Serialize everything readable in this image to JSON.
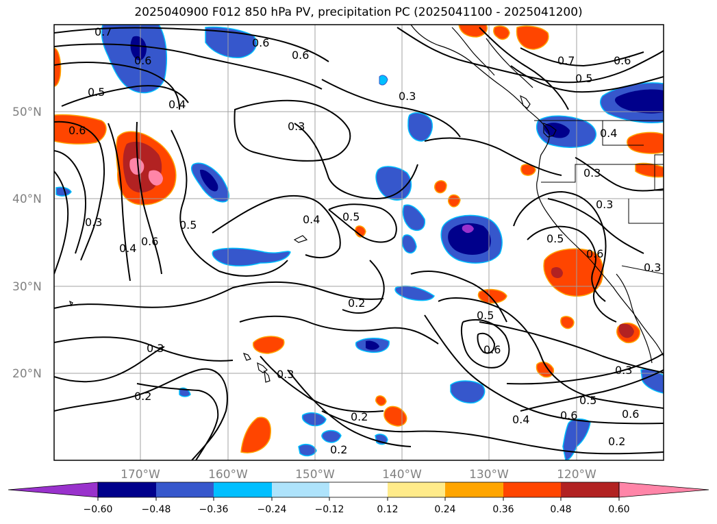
{
  "title": "2025040900 F012 850 hPa PV, precipitation PC (2025041100 - 2025041200)",
  "lat_labels": [
    "50°N",
    "40°N",
    "30°N",
    "20°N"
  ],
  "lon_labels": [
    "170°W",
    "160°W",
    "150°W",
    "140°W",
    "130°W",
    "120°W"
  ],
  "contour_labels": [
    "0.7",
    "0.6",
    "0.5",
    "0.4",
    "0.6",
    "0.6",
    "0.3",
    "0.3",
    "0.7",
    "0.5",
    "0.6",
    "0.6",
    "0.4",
    "0.3",
    "0.3",
    "0.3",
    "0.5",
    "0.4",
    "0.6",
    "0.4",
    "0.5",
    "0.5",
    "0.6",
    "0.3",
    "0.2",
    "0.5",
    "0.6",
    "0.3",
    "0.3",
    "0.2",
    "0.2",
    "0.4",
    "0.6",
    "0.6",
    "0.5",
    "0.3",
    "0.2",
    "0.2"
  ],
  "colorbar": {
    "ticks": [
      "−0.60",
      "−0.48",
      "−0.36",
      "−0.24",
      "−0.12",
      "0.12",
      "0.24",
      "0.36",
      "0.48",
      "0.60"
    ],
    "colors": {
      "under": "#9932cc",
      "bins": [
        "#00008b",
        "#3657cc",
        "#00bfff",
        "#aee3fb",
        "#ffffff",
        "#ffeb8a",
        "#ffa500",
        "#ff4500",
        "#b22222"
      ],
      "over": "#ff85a8"
    }
  }
}
